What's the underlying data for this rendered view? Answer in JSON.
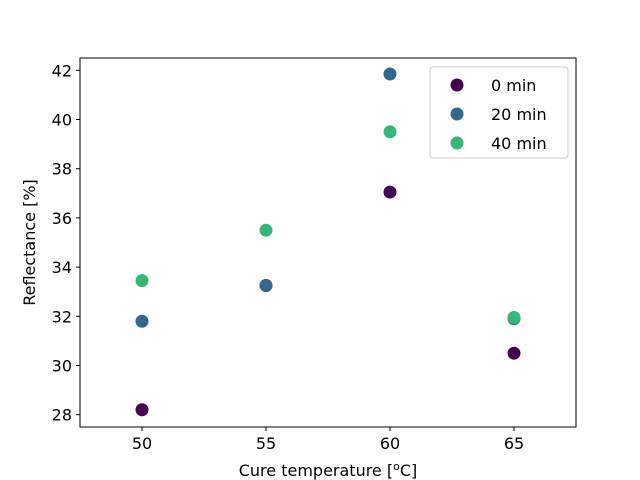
{
  "chart_data": {
    "type": "scatter",
    "title": "",
    "xlabel": "Cure temperature [",
    "xlabel_sup": "o",
    "xlabel_tail": "C]",
    "ylabel": "Reflectance [%]",
    "xlim": [
      47.5,
      67.5
    ],
    "ylim": [
      27.5,
      42.5
    ],
    "xticks": [
      50,
      55,
      60,
      65
    ],
    "yticks": [
      28,
      30,
      32,
      34,
      36,
      38,
      40,
      42
    ],
    "grid": false,
    "legend_position": "top-right",
    "series": [
      {
        "name": "0 min",
        "color": "#440154",
        "x": [
          50,
          55,
          60,
          65
        ],
        "y": [
          28.2,
          33.25,
          37.05,
          30.5
        ]
      },
      {
        "name": "20 min",
        "color": "#31688e",
        "x": [
          50,
          55,
          60,
          65
        ],
        "y": [
          31.8,
          33.25,
          41.85,
          31.9
        ]
      },
      {
        "name": "40 min",
        "color": "#35b779",
        "x": [
          50,
          55,
          60,
          65
        ],
        "y": [
          33.45,
          35.5,
          39.5,
          31.95
        ]
      }
    ]
  }
}
